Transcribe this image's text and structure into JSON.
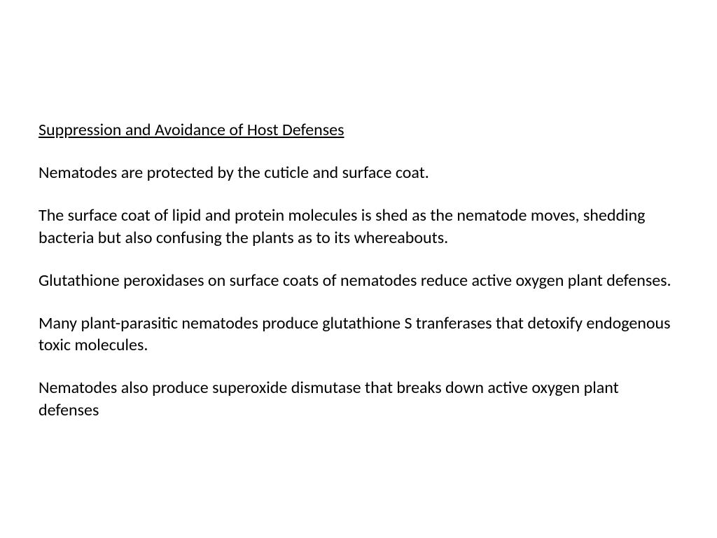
{
  "heading": "Suppression and Avoidance of Host Defenses",
  "paragraphs": [
    "Nematodes are protected by the cuticle and surface coat.",
    "The surface coat of lipid and protein molecules is shed as the nematode moves, shedding bacteria but also confusing the plants as to its whereabouts.",
    "Glutathione peroxidases on surface coats of nematodes reduce active oxygen plant defenses.",
    "Many plant-parasitic nematodes produce glutathione S tranferases that detoxify endogenous toxic molecules.",
    "Nematodes also produce superoxide dismutase that breaks down active oxygen plant defenses"
  ],
  "styles": {
    "background_color": "#ffffff",
    "text_color": "#000000",
    "font_family": "Calibri",
    "heading_fontsize": 24,
    "body_fontsize": 24,
    "heading_underline": true
  }
}
